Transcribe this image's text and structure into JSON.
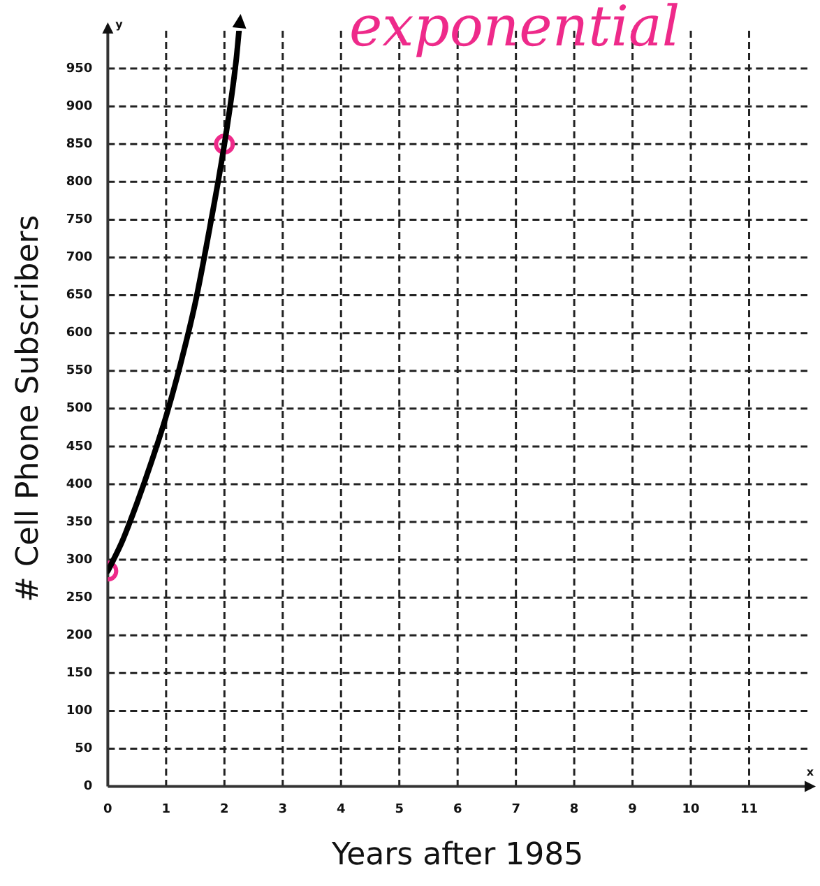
{
  "chart_data": {
    "type": "line",
    "xlabel": "Years after 1985",
    "ylabel": "# Cell Phone Subscribers",
    "annotations": [
      "exponential",
      "x",
      "y"
    ],
    "xlim": [
      0,
      12
    ],
    "xticks": [
      0,
      1,
      2,
      3,
      4,
      5,
      6,
      7,
      8,
      9,
      10,
      11
    ],
    "ylim": [
      0,
      1000
    ],
    "yticks": [
      0,
      50,
      100,
      150,
      200,
      250,
      300,
      350,
      400,
      450,
      500,
      550,
      600,
      650,
      700,
      750,
      800,
      850,
      900,
      950
    ],
    "grid": true,
    "legend": false,
    "series": [
      {
        "type": "line",
        "color": "#000000",
        "marker": "none",
        "x": [
          0,
          0.25,
          0.5,
          0.75,
          1,
          1.25,
          1.5,
          1.75,
          2,
          2.2,
          2.25
        ],
        "values": [
          285,
          325,
          375,
          430,
          490,
          560,
          640,
          740,
          850,
          960,
          1000
        ]
      },
      {
        "type": "scatter",
        "color": "#ee2a8a",
        "marker": "circle",
        "x": [
          0,
          2
        ],
        "values": [
          285,
          850
        ]
      }
    ]
  }
}
